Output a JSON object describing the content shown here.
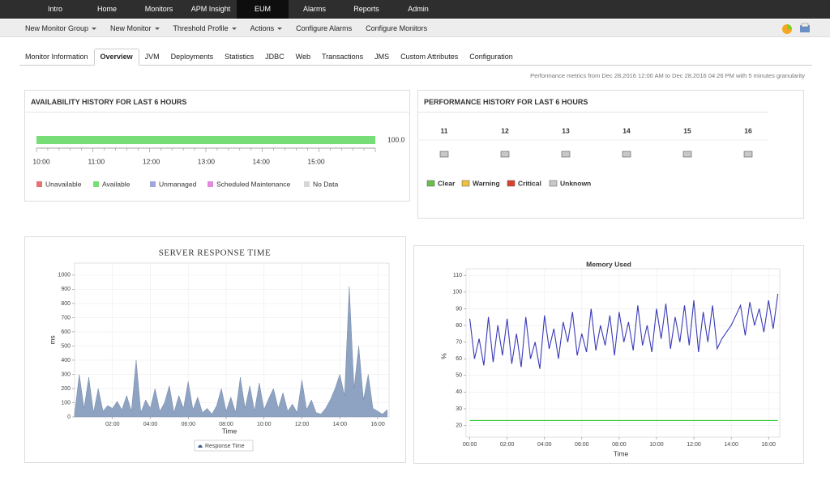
{
  "nav": {
    "items": [
      "Intro",
      "Home",
      "Monitors",
      "APM Insight",
      "EUM",
      "Alarms",
      "Reports",
      "Admin"
    ],
    "active": 4
  },
  "toolbar": [
    {
      "label": "New Monitor Group",
      "menu": true
    },
    {
      "label": "New Monitor",
      "menu": true
    },
    {
      "label": "Threshold Profile",
      "menu": true
    },
    {
      "label": "Actions",
      "menu": true
    },
    {
      "label": "Configure Alarms",
      "menu": false
    },
    {
      "label": "Configure Monitors",
      "menu": false
    }
  ],
  "tabs": {
    "items": [
      "Monitor Information",
      "Overview",
      "JVM",
      "Deployments",
      "Statistics",
      "JDBC",
      "Web",
      "Transactions",
      "JMS",
      "Custom Attributes",
      "Configuration"
    ],
    "active": 1
  },
  "metrics_note": "Performance metrics from Dec 28,2016 12:00 AM to Dec 28,2016 04:26 PM with 5 minutes granularity",
  "availability": {
    "title": "AVAILABILITY HISTORY FOR LAST 6 HOURS",
    "time_labels": [
      "10:00",
      "11:00",
      "12:00",
      "13:00",
      "14:00",
      "15:00"
    ],
    "values": [
      100
    ],
    "value_labels": [
      "100.0"
    ],
    "xlim": [
      0,
      100
    ],
    "color": "#77dd77",
    "legend": [
      {
        "name": "Unavailable",
        "color": "#e57373"
      },
      {
        "name": "Available",
        "color": "#77dd77"
      },
      {
        "name": "Unmanaged",
        "color": "#9fa8da"
      },
      {
        "name": "Scheduled Maintenance",
        "color": "#e08be0"
      },
      {
        "name": "No Data",
        "color": "#d6d6d6"
      }
    ]
  },
  "performance": {
    "title": "PERFORMANCE HISTORY FOR LAST 6 HOURS",
    "columns": [
      "11",
      "12",
      "13",
      "14",
      "15",
      "16"
    ],
    "status": [
      3,
      3,
      3,
      3,
      3,
      3
    ],
    "legend": [
      {
        "name": "Clear",
        "color": "#6abf4b"
      },
      {
        "name": "Warning",
        "color": "#f0c040"
      },
      {
        "name": "Critical",
        "color": "#d9412b"
      },
      {
        "name": "Unknown",
        "color": "#c8c8c8"
      }
    ]
  },
  "chart_data": [
    {
      "type": "area",
      "title": "SERVER RESPONSE TIME",
      "xlabel": "Time",
      "ylabel": "ms",
      "x": [
        0,
        0.25,
        0.5,
        0.75,
        1,
        1.25,
        1.5,
        1.75,
        2,
        2.25,
        2.5,
        2.75,
        3,
        3.25,
        3.5,
        3.75,
        4,
        4.25,
        4.5,
        4.75,
        5,
        5.25,
        5.5,
        5.75,
        6,
        6.25,
        6.5,
        6.75,
        7,
        7.25,
        7.5,
        7.75,
        8,
        8.25,
        8.5,
        8.75,
        9,
        9.25,
        9.5,
        9.75,
        10,
        10.25,
        10.5,
        10.75,
        11,
        11.25,
        11.5,
        11.75,
        12,
        12.25,
        12.5,
        12.75,
        13,
        13.25,
        13.5,
        13.75,
        14,
        14.25,
        14.5,
        14.75,
        15,
        15.25,
        15.5,
        15.75,
        16,
        16.25,
        16.5
      ],
      "series": [
        {
          "name": "Response Time",
          "color": "#8ea3c1",
          "values": [
            20,
            300,
            60,
            280,
            30,
            200,
            40,
            80,
            60,
            110,
            50,
            150,
            40,
            400,
            30,
            120,
            60,
            200,
            40,
            100,
            220,
            30,
            150,
            60,
            250,
            50,
            140,
            30,
            60,
            20,
            80,
            200,
            40,
            140,
            30,
            280,
            60,
            220,
            40,
            240,
            50,
            130,
            200,
            60,
            170,
            40,
            90,
            30,
            260,
            50,
            120,
            30,
            20,
            60,
            120,
            200,
            300,
            150,
            920,
            200,
            500,
            120,
            300,
            60,
            40,
            20,
            50
          ]
        }
      ],
      "xlim": [
        0,
        16.6
      ],
      "ylim": [
        0,
        1085
      ],
      "xticks": [
        {
          "value": 2,
          "label": "02:00"
        },
        {
          "value": 4,
          "label": "04:00"
        },
        {
          "value": 6,
          "label": "06:00"
        },
        {
          "value": 8,
          "label": "08:00"
        },
        {
          "value": 10,
          "label": "10:00"
        },
        {
          "value": 12,
          "label": "12:00"
        },
        {
          "value": 14,
          "label": "14:00"
        },
        {
          "value": 16,
          "label": "16:00"
        }
      ],
      "yticks": [
        0,
        100,
        200,
        300,
        400,
        500,
        600,
        700,
        800,
        900,
        1000
      ],
      "grid": true
    },
    {
      "type": "line",
      "title": "Memory Used",
      "xlabel": "Time",
      "ylabel": "%",
      "x": [
        0,
        0.25,
        0.5,
        0.75,
        1,
        1.25,
        1.5,
        1.75,
        2,
        2.25,
        2.5,
        2.75,
        3,
        3.25,
        3.5,
        3.75,
        4,
        4.25,
        4.5,
        4.75,
        5,
        5.25,
        5.5,
        5.75,
        6,
        6.25,
        6.5,
        6.75,
        7,
        7.25,
        7.5,
        7.75,
        8,
        8.25,
        8.5,
        8.75,
        9,
        9.25,
        9.5,
        9.75,
        10,
        10.25,
        10.5,
        10.75,
        11,
        11.25,
        11.5,
        11.75,
        12,
        12.25,
        12.5,
        12.75,
        13,
        13.25,
        13.5,
        13.75,
        14,
        14.25,
        14.5,
        14.75,
        15,
        15.25,
        15.5,
        15.75,
        16,
        16.25,
        16.5
      ],
      "series": [
        {
          "color": "#3a3ab8",
          "values": [
            84,
            60,
            72,
            56,
            85,
            58,
            80,
            62,
            84,
            57,
            75,
            55,
            85,
            60,
            70,
            54,
            86,
            66,
            78,
            60,
            82,
            70,
            88,
            62,
            75,
            64,
            90,
            65,
            80,
            68,
            86,
            62,
            88,
            70,
            82,
            65,
            92,
            68,
            80,
            64,
            90,
            72,
            93,
            66,
            85,
            70,
            92,
            68,
            95,
            64,
            88,
            70,
            92,
            66,
            72,
            76,
            80,
            86,
            92,
            74,
            94,
            80,
            90,
            76,
            95,
            78,
            99
          ]
        },
        {
          "color": "#44cc44",
          "x": [
            0,
            16.5
          ],
          "values": [
            23,
            23
          ]
        }
      ],
      "xlim": [
        -0.2,
        16.6
      ],
      "ylim": [
        13,
        114
      ],
      "xticks": [
        {
          "value": 0,
          "label": "00:00"
        },
        {
          "value": 2,
          "label": "02:00"
        },
        {
          "value": 4,
          "label": "04:00"
        },
        {
          "value": 6,
          "label": "06:00"
        },
        {
          "value": 8,
          "label": "08:00"
        },
        {
          "value": 10,
          "label": "10:00"
        },
        {
          "value": 12,
          "label": "12:00"
        },
        {
          "value": 14,
          "label": "14:00"
        },
        {
          "value": 16,
          "label": "16:00"
        }
      ],
      "yticks": [
        20,
        30,
        40,
        50,
        60,
        70,
        80,
        90,
        100,
        110
      ],
      "grid": true
    }
  ]
}
